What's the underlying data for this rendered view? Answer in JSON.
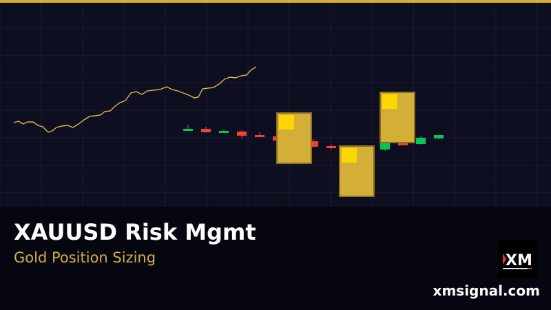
{
  "banner": {
    "title": "XAUUSD Risk Mgmt",
    "subtitle": "Gold Position Sizing",
    "website": "xmsignal.com",
    "logo_text": "XM"
  },
  "colors": {
    "accent_gold": "#d4af37",
    "bullish": "#00c853",
    "bearish": "#f44336",
    "background": "#0d0e1f",
    "footer": "#05060f"
  }
}
